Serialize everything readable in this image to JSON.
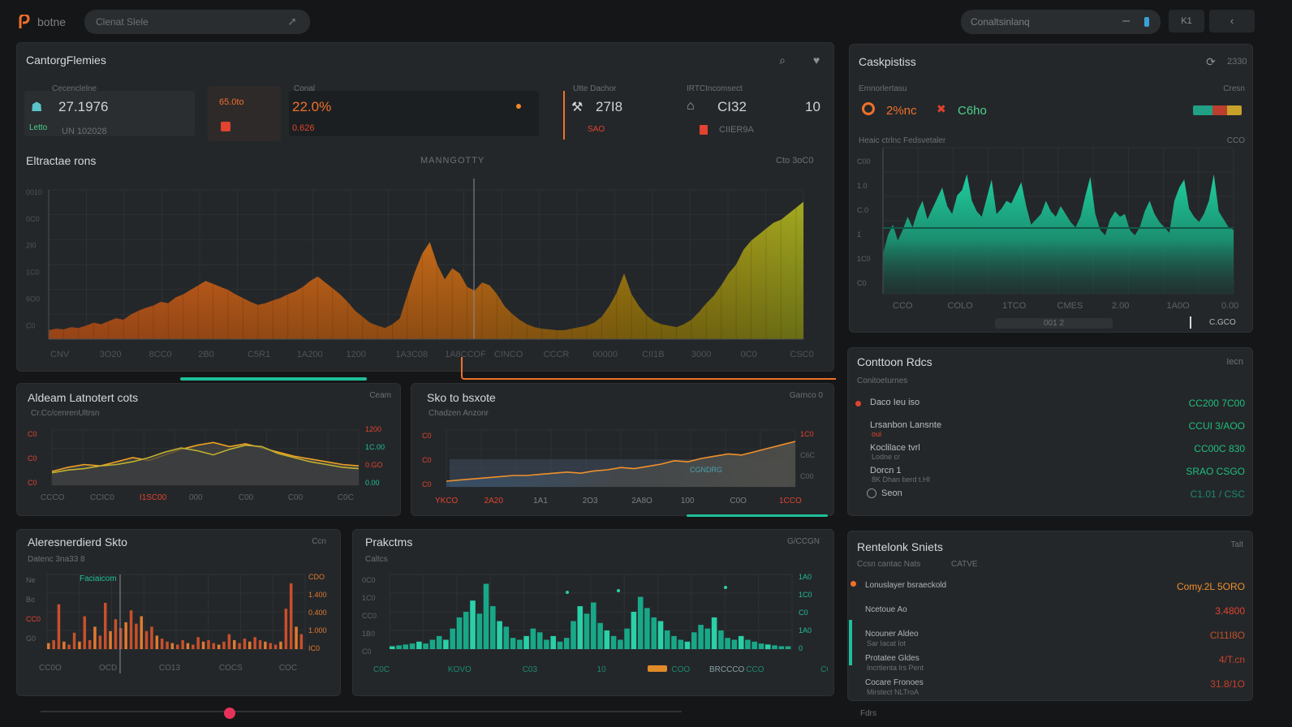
{
  "app": {
    "name": "botne",
    "search_placeholder": "Clenat Slele",
    "colors": {
      "accent": "#f0702a",
      "teal": "#1fbf9a",
      "bg": "#151617"
    }
  },
  "topright": {
    "search_value": "Conaltsinlanq",
    "btn1": "K1",
    "btn2": "‹"
  },
  "main": {
    "title": "CantorgFlemies",
    "kpis": [
      {
        "label": "Cecenclelne",
        "value": "27.1976",
        "sub": "UN 102028",
        "sub2": "Letto"
      },
      {
        "label": "",
        "value": "65.0to",
        "sub": ""
      },
      {
        "label": "Conal",
        "value": "22.0%",
        "sub": "0.626"
      },
      {
        "label": "Utte Dachor",
        "value": "27I8",
        "sub": "SAO"
      },
      {
        "label": "IRTCIncomsect",
        "value": "CI32",
        "sub": "CIIER9A",
        "extra": "10"
      }
    ]
  },
  "big_chart": {
    "title": "Eltractae rons",
    "center_label": "MANNGOTTY",
    "right_label": "Cto 3oC0",
    "x_labels": [
      "CNV",
      "3O20",
      "8CC0",
      "2B0",
      "C5R1",
      "1A200",
      "1200",
      "1A3C08",
      "1A8CCOF",
      "CINCO",
      "CCCR",
      "00000",
      "CII1B",
      "3000",
      "0C0",
      "CSC0"
    ],
    "y_labels": [
      "0010",
      "0C0",
      "2I0",
      "1C0",
      "6O0",
      "C0"
    ],
    "chart_data": {
      "type": "area",
      "title": "Eltractae rons",
      "values": [
        12,
        14,
        13,
        16,
        15,
        18,
        22,
        20,
        24,
        28,
        26,
        33,
        38,
        42,
        45,
        50,
        48,
        56,
        60,
        66,
        72,
        78,
        74,
        70,
        66,
        60,
        55,
        50,
        46,
        48,
        52,
        55,
        60,
        64,
        70,
        78,
        84,
        76,
        68,
        60,
        50,
        38,
        30,
        22,
        18,
        15,
        20,
        28,
        60,
        90,
        115,
        130,
        100,
        80,
        95,
        88,
        70,
        65,
        76,
        72,
        60,
        44,
        34,
        26,
        20,
        16,
        14,
        13,
        12,
        12,
        14,
        16,
        18,
        22,
        30,
        44,
        62,
        88,
        60,
        44,
        32,
        24,
        20,
        18,
        16,
        20,
        26,
        36,
        48,
        58,
        72,
        88,
        100,
        120,
        132,
        140,
        148,
        156,
        160,
        168,
        176,
        184
      ],
      "ylim": [
        0,
        200
      ]
    }
  },
  "panel_a": {
    "title": "Aldeam Latnotert cots",
    "subtitle": "Cr.Cc/cenrenUltrsn",
    "right_label": "Ceam",
    "y_left": [
      "C0",
      "C0",
      "C0"
    ],
    "y_right": [
      "1200",
      "1C.00",
      "0.GO",
      "0.00"
    ],
    "x_labels": [
      "CCCO",
      "CCIC0",
      "I1SC00",
      "000",
      "C00",
      "C00",
      "C0C"
    ],
    "chart_data": {
      "type": "line",
      "series": [
        {
          "name": "Series A",
          "values": [
            20,
            26,
            30,
            28,
            34,
            40,
            36,
            44,
            52,
            58,
            62,
            56,
            60,
            54,
            48,
            42,
            38,
            34,
            30,
            28
          ]
        },
        {
          "name": "Series B",
          "values": [
            18,
            22,
            24,
            28,
            30,
            34,
            40,
            48,
            54,
            50,
            44,
            52,
            58,
            56,
            46,
            40,
            34,
            30,
            26,
            24
          ]
        }
      ],
      "ylim": [
        0,
        80
      ]
    }
  },
  "panel_b": {
    "title": "Sko to bsxote",
    "subtitle": "Chadzen Anzonr",
    "right_label": "Garnco 0",
    "badge": "CGNDRG",
    "y_left": [
      "C0",
      "C0",
      "C0"
    ],
    "y_right": [
      "1C0",
      "C6C",
      "C00"
    ],
    "x_labels": [
      "YKCO",
      "2A20",
      "1A1",
      "2O3",
      "2A8O",
      "100",
      "C0O",
      "1CCO"
    ],
    "chart_data": {
      "type": "area",
      "values": [
        10,
        12,
        14,
        16,
        18,
        20,
        20,
        22,
        24,
        26,
        24,
        28,
        30,
        34,
        32,
        36,
        40,
        46,
        44,
        50,
        54,
        58,
        56,
        62,
        68,
        74,
        80
      ],
      "ylim": [
        0,
        100
      ]
    }
  },
  "panel_c": {
    "title": "Aleresnerdierd Skto",
    "subtitle": "Datenc 3na33 8",
    "legend": "Faciaicom",
    "right_label": "Ccn",
    "y_left": [
      "Ne",
      "Bo",
      "CC0",
      "G0"
    ],
    "y_right": [
      "CDO",
      "1.400",
      "0.400",
      "1.000",
      "IC0"
    ],
    "x_labels": [
      "CC0O",
      "OCD",
      "CO13",
      "COCS",
      "COC"
    ],
    "chart_data": {
      "type": "bar",
      "values": [
        8,
        12,
        60,
        10,
        6,
        22,
        10,
        44,
        12,
        30,
        18,
        62,
        24,
        40,
        28,
        36,
        52,
        34,
        44,
        24,
        30,
        18,
        14,
        10,
        8,
        6,
        12,
        8,
        6,
        16,
        10,
        12,
        8,
        6,
        10,
        20,
        12,
        8,
        14,
        10,
        16,
        12,
        10,
        8,
        6,
        10,
        54,
        88,
        30,
        20
      ],
      "ylim": [
        0,
        100
      ]
    }
  },
  "panel_d": {
    "title": "Prakctms",
    "subtitle": "Caltcs",
    "right_label": "G/CCGN",
    "badge": "BRCCCO",
    "y_left": [
      "0C0",
      "1C0",
      "CC0",
      "1B0",
      "C0"
    ],
    "y_right": [
      "1A0",
      "1C0",
      "C0",
      "1A0",
      "0"
    ],
    "x_labels": [
      "C0C",
      "KOVO",
      "C03",
      "10",
      "COO",
      "CCO",
      "CC0"
    ],
    "chart_data": {
      "type": "bar",
      "values": [
        3,
        4,
        5,
        6,
        8,
        6,
        10,
        14,
        10,
        22,
        34,
        40,
        52,
        38,
        70,
        46,
        30,
        24,
        12,
        10,
        14,
        22,
        18,
        10,
        14,
        8,
        12,
        30,
        46,
        38,
        50,
        28,
        20,
        14,
        10,
        22,
        40,
        56,
        44,
        34,
        30,
        20,
        14,
        10,
        8,
        18,
        26,
        22,
        34,
        20,
        12,
        10,
        14,
        10,
        8,
        6,
        5,
        4,
        3,
        3
      ],
      "ylim": [
        0,
        80
      ]
    }
  },
  "right_top": {
    "title": "Caskpistiss",
    "title_right": "2330",
    "label": "Emnorlertasu",
    "label_right": "Cresn",
    "stat1": "2%nc",
    "stat2": "C6ho",
    "sub": "Heaic ctrlnc Fedsvetaler",
    "sub_right": "CCO",
    "x_labels": [
      "CCO",
      "COLO",
      "1TCO",
      "CMES",
      "2.00",
      "1A0O",
      "0.00"
    ],
    "y_labels": [
      "C00",
      "1.0",
      "C.0",
      "1",
      "1C0",
      "C0"
    ],
    "footer_mid": "001 2",
    "footer_right": "C.GCO",
    "chart_data": {
      "type": "area",
      "values": [
        30,
        44,
        52,
        40,
        48,
        58,
        50,
        62,
        70,
        56,
        64,
        72,
        80,
        66,
        60,
        74,
        78,
        90,
        70,
        62,
        58,
        72,
        86,
        60,
        64,
        70,
        68,
        76,
        84,
        66,
        52,
        56,
        60,
        70,
        62,
        58,
        66,
        60,
        54,
        50,
        58,
        74,
        88,
        60,
        48,
        44,
        56,
        62,
        58,
        60,
        48,
        44,
        50,
        62,
        70,
        60,
        54,
        50,
        46,
        70,
        80,
        86,
        64,
        58,
        54,
        60,
        70,
        90,
        62,
        56,
        50,
        48
      ],
      "ylim": [
        0,
        110
      ]
    }
  },
  "right_mid": {
    "title": "Conttoon Rdcs",
    "title_right": "Iecn",
    "sub": "Conitoeturnes",
    "rows": [
      {
        "label": "Daco Ieu iso",
        "sub": "",
        "value": "CC200 7C00"
      },
      {
        "label": "Lrsanbon Lansnte",
        "sub": "oul",
        "value": "CCUI 3/AOO"
      },
      {
        "label": "Koclilace tvrl",
        "sub": "Lodne cr",
        "value": "CC00C 830"
      },
      {
        "label": "Dorcn 1",
        "sub": "8K Dhan berd t.HI",
        "value": "SRAO CSGO"
      },
      {
        "label": "Seon",
        "sub": "",
        "value": "C1.01 / CSC"
      }
    ]
  },
  "right_bot": {
    "title": "Rentelonk Sniets",
    "title_right": "Talt",
    "sub": "Ccsn cantac Nats",
    "sub2": "CATVE",
    "rows": [
      {
        "label": "Lonuslayer bsraeckold",
        "sub": "",
        "value": "Comy.2L 5ORO"
      },
      {
        "label": "Ncetoue Ao",
        "sub": "",
        "value": "3.4800"
      },
      {
        "label": "Ncouner Aldeo",
        "sub": "Sar Iacat lot",
        "value": "Cl11I8O"
      },
      {
        "label": "Protatee Gldes",
        "sub": "Incrtienta lrs Pent",
        "value": "4/T.cn"
      },
      {
        "label": "Cocare Fronoes",
        "sub": "Mirstect NLTroA",
        "value": "31.8/1O"
      }
    ]
  },
  "bottom": {
    "label": "Fdrs"
  }
}
